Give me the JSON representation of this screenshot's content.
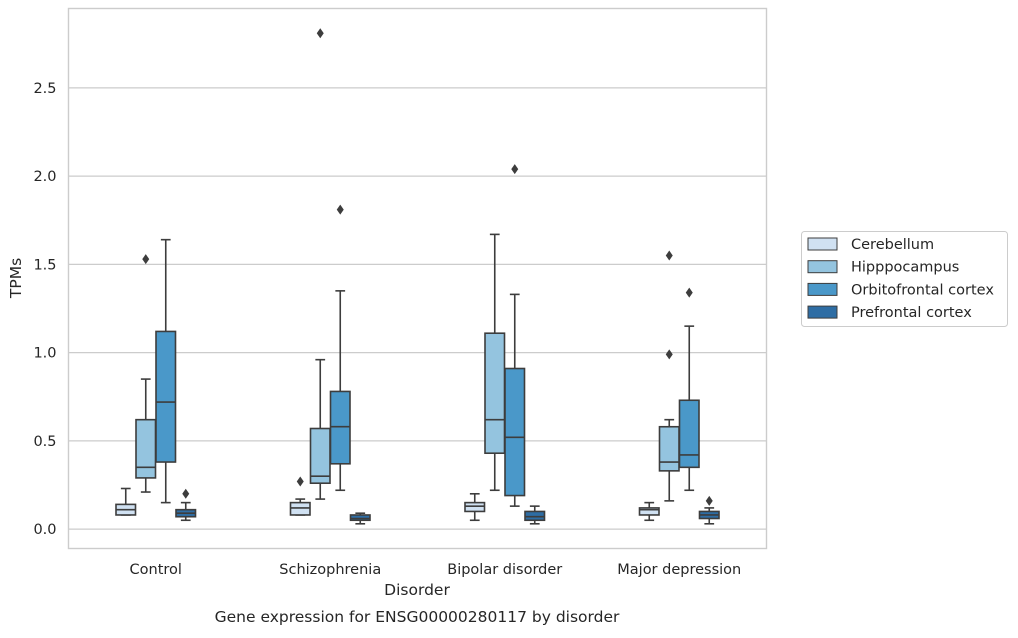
{
  "chart_data": {
    "type": "box",
    "title": "",
    "caption": "Gene expression for ENSG00000280117 by disorder",
    "xlabel": "Disorder",
    "ylabel": "TPMs",
    "ylim": [
      -0.11,
      2.95
    ],
    "yticks": [
      "0.0",
      "0.5",
      "1.0",
      "1.5",
      "2.0",
      "2.5"
    ],
    "ytick_values": [
      0,
      0.5,
      1.0,
      1.5,
      2.0,
      2.5
    ],
    "grid": "horizontal",
    "legend_position": "right",
    "categories": [
      "Control",
      "Schizophrenia",
      "Bipolar disorder",
      "Major depression"
    ],
    "series": [
      {
        "name": "Cerebellum",
        "color": "#d0e1f2",
        "boxes": [
          {
            "whisker_low": 0.08,
            "q1": 0.08,
            "median": 0.11,
            "q3": 0.14,
            "whisker_high": 0.23,
            "outliers": []
          },
          {
            "whisker_low": 0.08,
            "q1": 0.08,
            "median": 0.12,
            "q3": 0.15,
            "whisker_high": 0.17,
            "outliers": [
              0.27
            ]
          },
          {
            "whisker_low": 0.05,
            "q1": 0.1,
            "median": 0.13,
            "q3": 0.15,
            "whisker_high": 0.2,
            "outliers": []
          },
          {
            "whisker_low": 0.05,
            "q1": 0.08,
            "median": 0.11,
            "q3": 0.12,
            "whisker_high": 0.15,
            "outliers": []
          }
        ]
      },
      {
        "name": "Hipppocampus",
        "color": "#94c4df",
        "boxes": [
          {
            "whisker_low": 0.21,
            "q1": 0.29,
            "median": 0.35,
            "q3": 0.62,
            "whisker_high": 0.85,
            "outliers": [
              1.53
            ]
          },
          {
            "whisker_low": 0.17,
            "q1": 0.26,
            "median": 0.3,
            "q3": 0.57,
            "whisker_high": 0.96,
            "outliers": [
              2.81
            ]
          },
          {
            "whisker_low": 0.22,
            "q1": 0.43,
            "median": 0.62,
            "q3": 1.11,
            "whisker_high": 1.67,
            "outliers": []
          },
          {
            "whisker_low": 0.16,
            "q1": 0.33,
            "median": 0.38,
            "q3": 0.58,
            "whisker_high": 0.62,
            "outliers": [
              0.99,
              1.55
            ]
          }
        ]
      },
      {
        "name": "Orbitofrontal cortex",
        "color": "#4a98c9",
        "boxes": [
          {
            "whisker_low": 0.15,
            "q1": 0.38,
            "median": 0.72,
            "q3": 1.12,
            "whisker_high": 1.64,
            "outliers": []
          },
          {
            "whisker_low": 0.22,
            "q1": 0.37,
            "median": 0.58,
            "q3": 0.78,
            "whisker_high": 1.35,
            "outliers": [
              1.81
            ]
          },
          {
            "whisker_low": 0.13,
            "q1": 0.19,
            "median": 0.52,
            "q3": 0.91,
            "whisker_high": 1.33,
            "outliers": [
              2.04
            ]
          },
          {
            "whisker_low": 0.22,
            "q1": 0.35,
            "median": 0.42,
            "q3": 0.73,
            "whisker_high": 1.15,
            "outliers": [
              1.34
            ]
          }
        ]
      },
      {
        "name": "Prefrontal cortex",
        "color": "#2e6da4",
        "boxes": [
          {
            "whisker_low": 0.05,
            "q1": 0.07,
            "median": 0.09,
            "q3": 0.11,
            "whisker_high": 0.15,
            "outliers": [
              0.2
            ]
          },
          {
            "whisker_low": 0.03,
            "q1": 0.05,
            "median": 0.06,
            "q3": 0.08,
            "whisker_high": 0.09,
            "outliers": []
          },
          {
            "whisker_low": 0.03,
            "q1": 0.05,
            "median": 0.07,
            "q3": 0.1,
            "whisker_high": 0.13,
            "outliers": []
          },
          {
            "whisker_low": 0.03,
            "q1": 0.06,
            "median": 0.08,
            "q3": 0.1,
            "whisker_high": 0.12,
            "outliers": [
              0.16
            ]
          }
        ]
      }
    ]
  }
}
